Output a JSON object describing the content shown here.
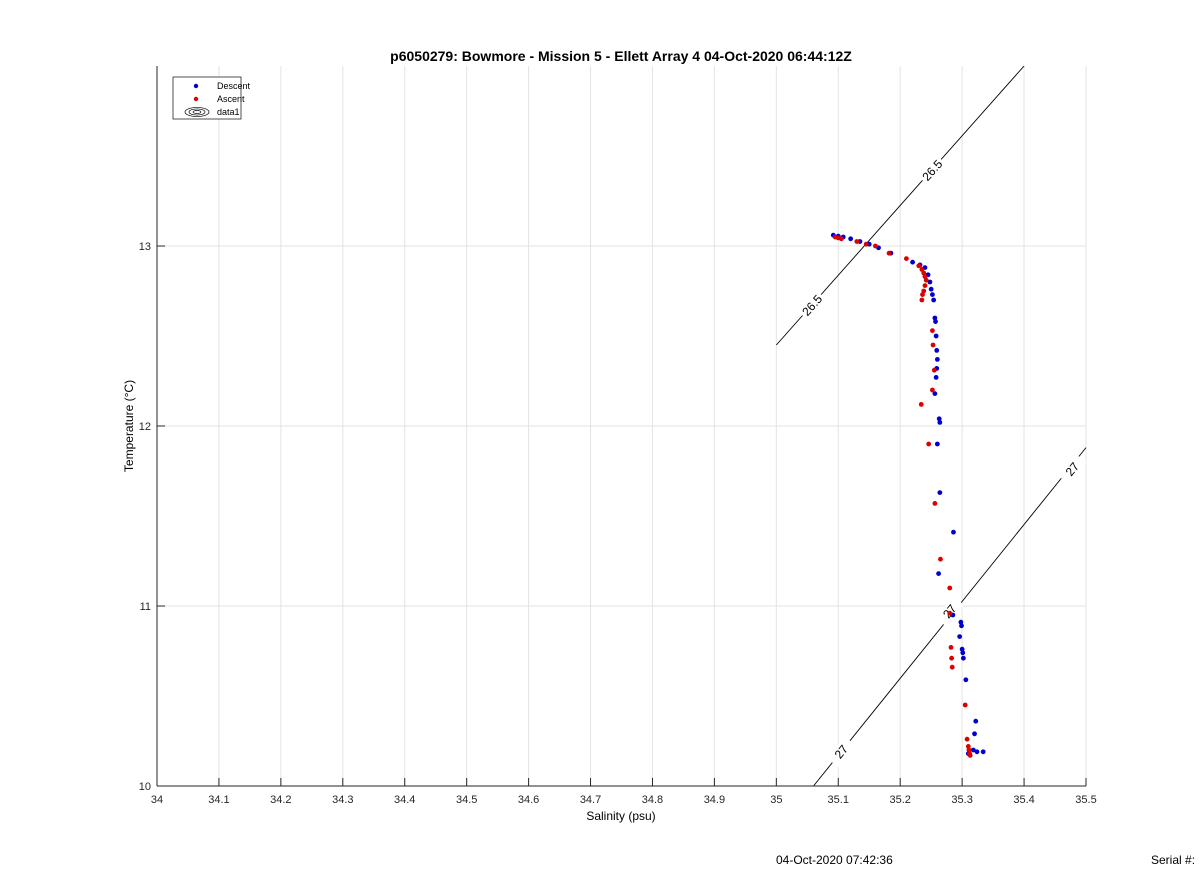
{
  "chart_data": {
    "type": "scatter",
    "title": "p6050279: Bowmore - Mission 5 - Ellett Array 4 04-Oct-2020 06:44:12Z",
    "xlabel": "Salinity (psu)",
    "ylabel": "Temperature (°C)",
    "xlim": [
      34,
      35.5
    ],
    "ylim": [
      10,
      14
    ],
    "xticks": [
      34,
      34.1,
      34.2,
      34.3,
      34.4,
      34.5,
      34.6,
      34.7,
      34.8,
      34.9,
      35,
      35.1,
      35.2,
      35.3,
      35.4,
      35.5
    ],
    "xtick_labels": [
      "34",
      "34.1",
      "34.2",
      "34.3",
      "34.4",
      "34.5",
      "34.6",
      "34.7",
      "34.8",
      "34.9",
      "35",
      "35.1",
      "35.2",
      "35.3",
      "35.4",
      "35.5"
    ],
    "yticks": [
      10,
      11,
      12,
      13
    ],
    "ytick_labels": [
      "10",
      "11",
      "12",
      "13"
    ],
    "grid": true,
    "legend_position": "top-left",
    "series": [
      {
        "name": "Descent",
        "color": "#0000cc",
        "points": [
          [
            35.092,
            13.06
          ],
          [
            35.1,
            13.055
          ],
          [
            35.108,
            13.05
          ],
          [
            35.12,
            13.04
          ],
          [
            35.135,
            13.025
          ],
          [
            35.15,
            13.01
          ],
          [
            35.165,
            12.99
          ],
          [
            35.185,
            12.96
          ],
          [
            35.22,
            12.91
          ],
          [
            35.232,
            12.895
          ],
          [
            35.24,
            12.88
          ],
          [
            35.245,
            12.84
          ],
          [
            35.248,
            12.8
          ],
          [
            35.25,
            12.76
          ],
          [
            35.252,
            12.73
          ],
          [
            35.254,
            12.7
          ],
          [
            35.256,
            12.6
          ],
          [
            35.257,
            12.58
          ],
          [
            35.258,
            12.5
          ],
          [
            35.259,
            12.42
          ],
          [
            35.26,
            12.37
          ],
          [
            35.259,
            12.32
          ],
          [
            35.258,
            12.27
          ],
          [
            35.256,
            12.18
          ],
          [
            35.263,
            12.04
          ],
          [
            35.264,
            12.02
          ],
          [
            35.26,
            11.9
          ],
          [
            35.264,
            11.63
          ],
          [
            35.286,
            11.41
          ],
          [
            35.262,
            11.18
          ],
          [
            35.285,
            10.95
          ],
          [
            35.298,
            10.91
          ],
          [
            35.299,
            10.89
          ],
          [
            35.296,
            10.83
          ],
          [
            35.3,
            10.76
          ],
          [
            35.301,
            10.74
          ],
          [
            35.302,
            10.71
          ],
          [
            35.306,
            10.59
          ],
          [
            35.322,
            10.36
          ],
          [
            35.32,
            10.29
          ],
          [
            35.318,
            10.2
          ],
          [
            35.324,
            10.19
          ],
          [
            35.334,
            10.19
          ],
          [
            35.31,
            10.18
          ]
        ]
      },
      {
        "name": "Ascent",
        "color": "#dd0000",
        "points": [
          [
            35.095,
            13.05
          ],
          [
            35.1,
            13.045
          ],
          [
            35.105,
            13.04
          ],
          [
            35.13,
            13.025
          ],
          [
            35.145,
            13.01
          ],
          [
            35.16,
            13.0
          ],
          [
            35.182,
            12.96
          ],
          [
            35.21,
            12.93
          ],
          [
            35.23,
            12.89
          ],
          [
            35.235,
            12.87
          ],
          [
            35.238,
            12.85
          ],
          [
            35.24,
            12.83
          ],
          [
            35.242,
            12.81
          ],
          [
            35.24,
            12.78
          ],
          [
            35.238,
            12.75
          ],
          [
            35.236,
            12.73
          ],
          [
            35.235,
            12.7
          ],
          [
            35.252,
            12.53
          ],
          [
            35.253,
            12.45
          ],
          [
            35.255,
            12.31
          ],
          [
            35.252,
            12.2
          ],
          [
            35.234,
            12.12
          ],
          [
            35.246,
            11.9
          ],
          [
            35.256,
            11.57
          ],
          [
            35.265,
            11.26
          ],
          [
            35.28,
            11.1
          ],
          [
            35.28,
            10.96
          ],
          [
            35.282,
            10.77
          ],
          [
            35.283,
            10.71
          ],
          [
            35.284,
            10.66
          ],
          [
            35.305,
            10.45
          ],
          [
            35.308,
            10.26
          ],
          [
            35.31,
            10.22
          ],
          [
            35.311,
            10.2
          ],
          [
            35.312,
            10.18
          ],
          [
            35.313,
            10.17
          ]
        ]
      }
    ],
    "contour_series_name": "data1",
    "contours": [
      {
        "level": "26.5",
        "segment": [
          [
            35.0,
            12.45
          ],
          [
            35.4,
            14.0
          ]
        ],
        "labels": [
          {
            "s": 35.058,
            "t": 12.67
          },
          {
            "s": 35.252,
            "t": 13.42
          }
        ]
      },
      {
        "level": "27",
        "segment": [
          [
            35.06,
            10.0
          ],
          [
            35.5,
            11.88
          ]
        ],
        "labels": [
          {
            "s": 35.105,
            "t": 10.19
          },
          {
            "s": 35.28,
            "t": 10.97
          },
          {
            "s": 35.478,
            "t": 11.76
          }
        ]
      }
    ]
  },
  "footer": {
    "timestamp": "04-Oct-2020 07:42:36",
    "serial_label": "Serial #:"
  }
}
